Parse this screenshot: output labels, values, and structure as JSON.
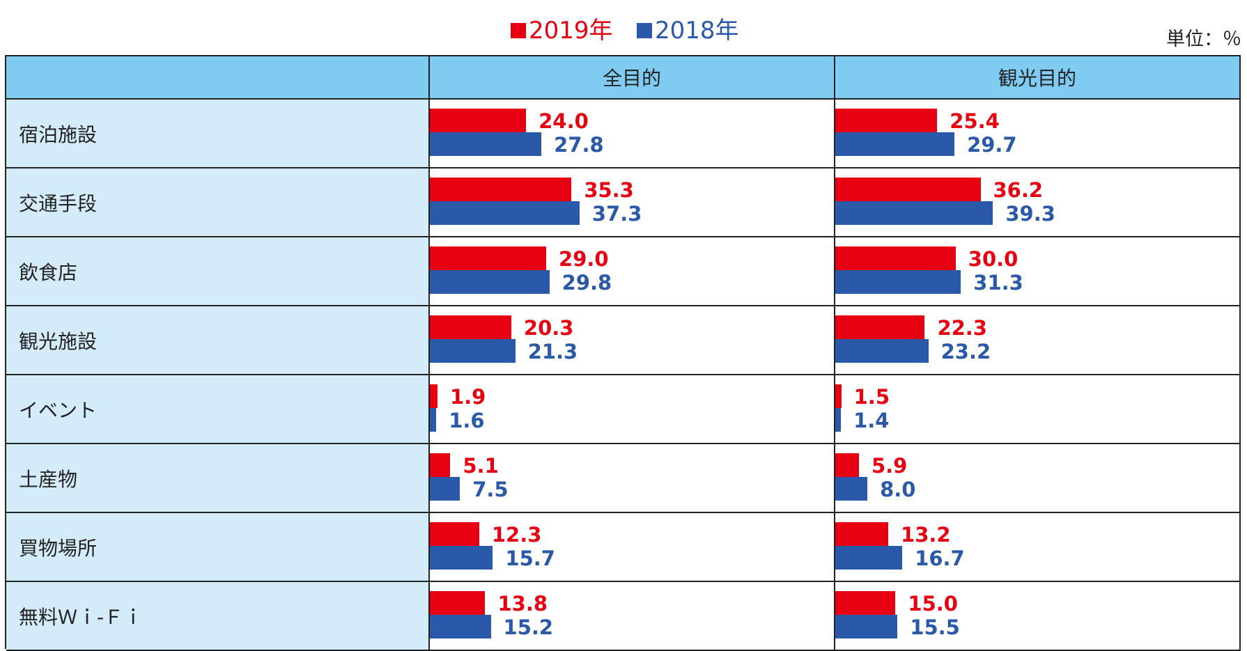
{
  "legend": {
    "items": [
      {
        "label": "2019年",
        "color": "#e60012"
      },
      {
        "label": "2018年",
        "color": "#2a59a9"
      }
    ]
  },
  "unit_label": "単位：％",
  "table": {
    "headers": [
      "",
      "全目的",
      "観光目的"
    ],
    "rows": [
      {
        "label": "宿泊施設"
      },
      {
        "label": "交通手段"
      },
      {
        "label": "飲食店"
      },
      {
        "label": "観光施設"
      },
      {
        "label": "イベント"
      },
      {
        "label": "土産物"
      },
      {
        "label": "買物場所"
      },
      {
        "label": "無料Ｗｉ-Ｆｉ"
      }
    ]
  },
  "chart_data": {
    "type": "bar",
    "orientation": "horizontal",
    "unit": "％",
    "categories": [
      "宿泊施設",
      "交通手段",
      "飲食店",
      "観光施設",
      "イベント",
      "土産物",
      "買物場所",
      "無料Ｗｉ-Ｆｉ"
    ],
    "panels": [
      {
        "title": "全目的",
        "series": [
          {
            "name": "2019年",
            "color": "#e60012",
            "values": [
              24.0,
              35.3,
              29.0,
              20.3,
              1.9,
              5.1,
              12.3,
              13.8
            ],
            "labels": [
              "24.0",
              "35.3",
              "29.0",
              "20.3",
              "1.9",
              "5.1",
              "12.3",
              "13.8"
            ]
          },
          {
            "name": "2018年",
            "color": "#2a59a9",
            "values": [
              27.8,
              37.3,
              29.8,
              21.3,
              1.6,
              7.5,
              15.7,
              15.2
            ],
            "labels": [
              "27.8",
              "37.3",
              "29.8",
              "21.3",
              "1.6",
              "7.5",
              "15.7",
              "15.2"
            ]
          }
        ]
      },
      {
        "title": "観光目的",
        "series": [
          {
            "name": "2019年",
            "color": "#e60012",
            "values": [
              25.4,
              36.2,
              30.0,
              22.3,
              1.5,
              5.9,
              13.2,
              15.0
            ],
            "labels": [
              "25.4",
              "36.2",
              "30.0",
              "22.3",
              "1.5",
              "5.9",
              "13.2",
              "15.0"
            ]
          },
          {
            "name": "2018年",
            "color": "#2a59a9",
            "values": [
              29.7,
              39.3,
              31.3,
              23.2,
              1.4,
              8.0,
              16.7,
              15.5
            ],
            "labels": [
              "29.7",
              "39.3",
              "31.3",
              "23.2",
              "1.4",
              "8.0",
              "16.7",
              "15.5"
            ]
          }
        ]
      }
    ],
    "legend": "top-center",
    "grid": false
  }
}
